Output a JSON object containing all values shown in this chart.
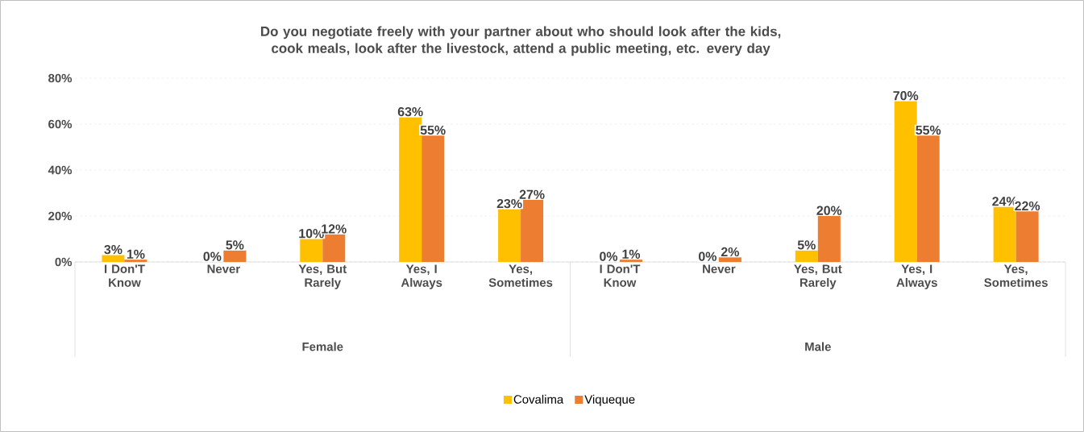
{
  "chart_data": {
    "type": "bar",
    "title": "Do you negotiate freely with your partner about who should look after the kids, cook meals, look after the livestock, attend a public meeting, etc. every day",
    "categories": [
      "I Don'T Know",
      "Never",
      "Yes, But Rarely",
      "Yes, I Always",
      "Yes, Sometimes",
      "I Don'T Know",
      "Never",
      "Yes, But Rarely",
      "Yes, I Always",
      "Yes, Sometimes"
    ],
    "annotations": [
      "Female",
      "Male"
    ],
    "series": [
      {
        "name": "Covalima",
        "color": "#ffc000",
        "values": [
          3,
          0,
          10,
          63,
          23,
          0,
          0,
          5,
          70,
          24
        ],
        "value_labels": [
          "3%",
          "0%",
          "10%",
          "63%",
          "23%",
          "0%",
          "0%",
          "5%",
          "70%",
          "24%"
        ]
      },
      {
        "name": "Viqueque",
        "color": "#ed7d31",
        "values": [
          1,
          5,
          12,
          55,
          27,
          1,
          2,
          20,
          55,
          22
        ],
        "value_labels": [
          "1%",
          "5%",
          "12%",
          "55%",
          "27%",
          "1%",
          "2%",
          "20%",
          "55%",
          "22%"
        ]
      }
    ],
    "ylim": [
      0,
      80
    ],
    "yticks": [
      {
        "value": 0,
        "label": "0%"
      },
      {
        "value": 20,
        "label": "20%"
      },
      {
        "value": 40,
        "label": "40%"
      },
      {
        "value": 60,
        "label": "60%"
      },
      {
        "value": 80,
        "label": "80%"
      }
    ],
    "grid": "y",
    "legend": "bottom"
  }
}
